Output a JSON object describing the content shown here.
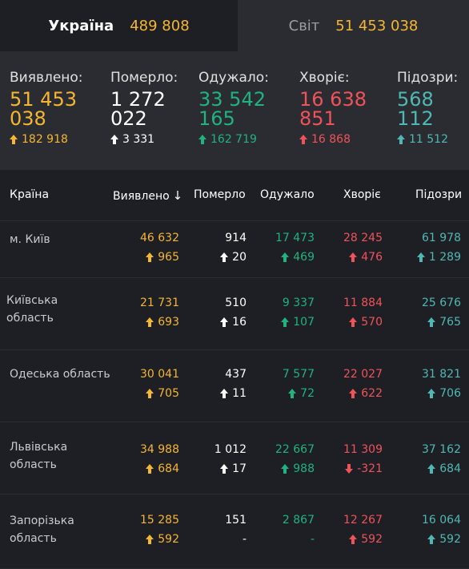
{
  "tabs": {
    "ukraine": {
      "label": "Україна",
      "value": "489 808"
    },
    "world": {
      "label": "Світ",
      "value": "51 453 038"
    }
  },
  "stats": [
    {
      "label": "Виявлено:",
      "line1": "51 453",
      "line2": "038",
      "delta": "182 918",
      "dir": "up",
      "color": "yellow"
    },
    {
      "label": "Померло:",
      "line1": "1 272",
      "line2": "022",
      "delta": "3 331",
      "dir": "up",
      "color": "white"
    },
    {
      "label": "Одужало:",
      "line1": "33 542",
      "line2": "165",
      "delta": "162 719",
      "dir": "up",
      "color": "green"
    },
    {
      "label": "Хворіє:",
      "line1": "16 638",
      "line2": "851",
      "delta": "16 868",
      "dir": "up",
      "color": "red"
    },
    {
      "label": "Підозри:",
      "line1": "568",
      "line2": "112",
      "delta": "11 512",
      "dir": "up",
      "color": "teal"
    }
  ],
  "table": {
    "headers": {
      "country": "Країна",
      "detected": "Виявлено",
      "sort_icon": "↓",
      "died": "Померло",
      "recovered": "Одужало",
      "sick": "Хворіє",
      "suspected": "Підозри"
    },
    "rows": [
      {
        "region_l1": "м. Київ",
        "region_l2": "",
        "detected": "46 632",
        "detected_delta": "965",
        "died": "914",
        "died_delta": "20",
        "recovered": "17 473",
        "recovered_delta": "469",
        "sick": "28 245",
        "sick_delta": "476",
        "suspected": "61 978",
        "suspected_delta": "1 289"
      },
      {
        "region_l1": "Київська",
        "region_l2": "область",
        "detected": "21 731",
        "detected_delta": "693",
        "died": "510",
        "died_delta": "16",
        "recovered": "9 337",
        "recovered_delta": "107",
        "sick": "11 884",
        "sick_delta": "570",
        "suspected": "25 676",
        "suspected_delta": "765"
      },
      {
        "region_l1": "Одеська область",
        "region_l2": "",
        "detected": "30 041",
        "detected_delta": "705",
        "died": "437",
        "died_delta": "11",
        "recovered": "7 577",
        "recovered_delta": "72",
        "sick": "22 027",
        "sick_delta": "622",
        "suspected": "31 821",
        "suspected_delta": "706"
      },
      {
        "region_l1": "Львівська",
        "region_l2": "область",
        "detected": "34 988",
        "detected_delta": "684",
        "died": "1 012",
        "died_delta": "17",
        "recovered": "22 667",
        "recovered_delta": "988",
        "sick": "11 309",
        "sick_delta": "-321",
        "sick_dir": "down",
        "suspected": "37 162",
        "suspected_delta": "684"
      },
      {
        "region_l1": "Запорізька",
        "region_l2": "область",
        "detected": "15 285",
        "detected_delta": "592",
        "died": "151",
        "died_delta": "-",
        "died_dir": "none",
        "recovered": "2 867",
        "recovered_delta": "-",
        "recovered_dir": "none",
        "sick": "12 267",
        "sick_delta": "592",
        "suspected": "16 064",
        "suspected_delta": "592"
      }
    ]
  },
  "colors": {
    "yellow": "#f5b630",
    "white": "#ffffff",
    "green": "#1fb380",
    "red": "#f0525a",
    "teal": "#4fb8b4",
    "bg": "#1e1f24",
    "panel": "#2b2c32"
  },
  "icons": {
    "increase": "arrow-up-icon",
    "decrease": "arrow-down-icon",
    "sort": "sort-desc-icon"
  }
}
